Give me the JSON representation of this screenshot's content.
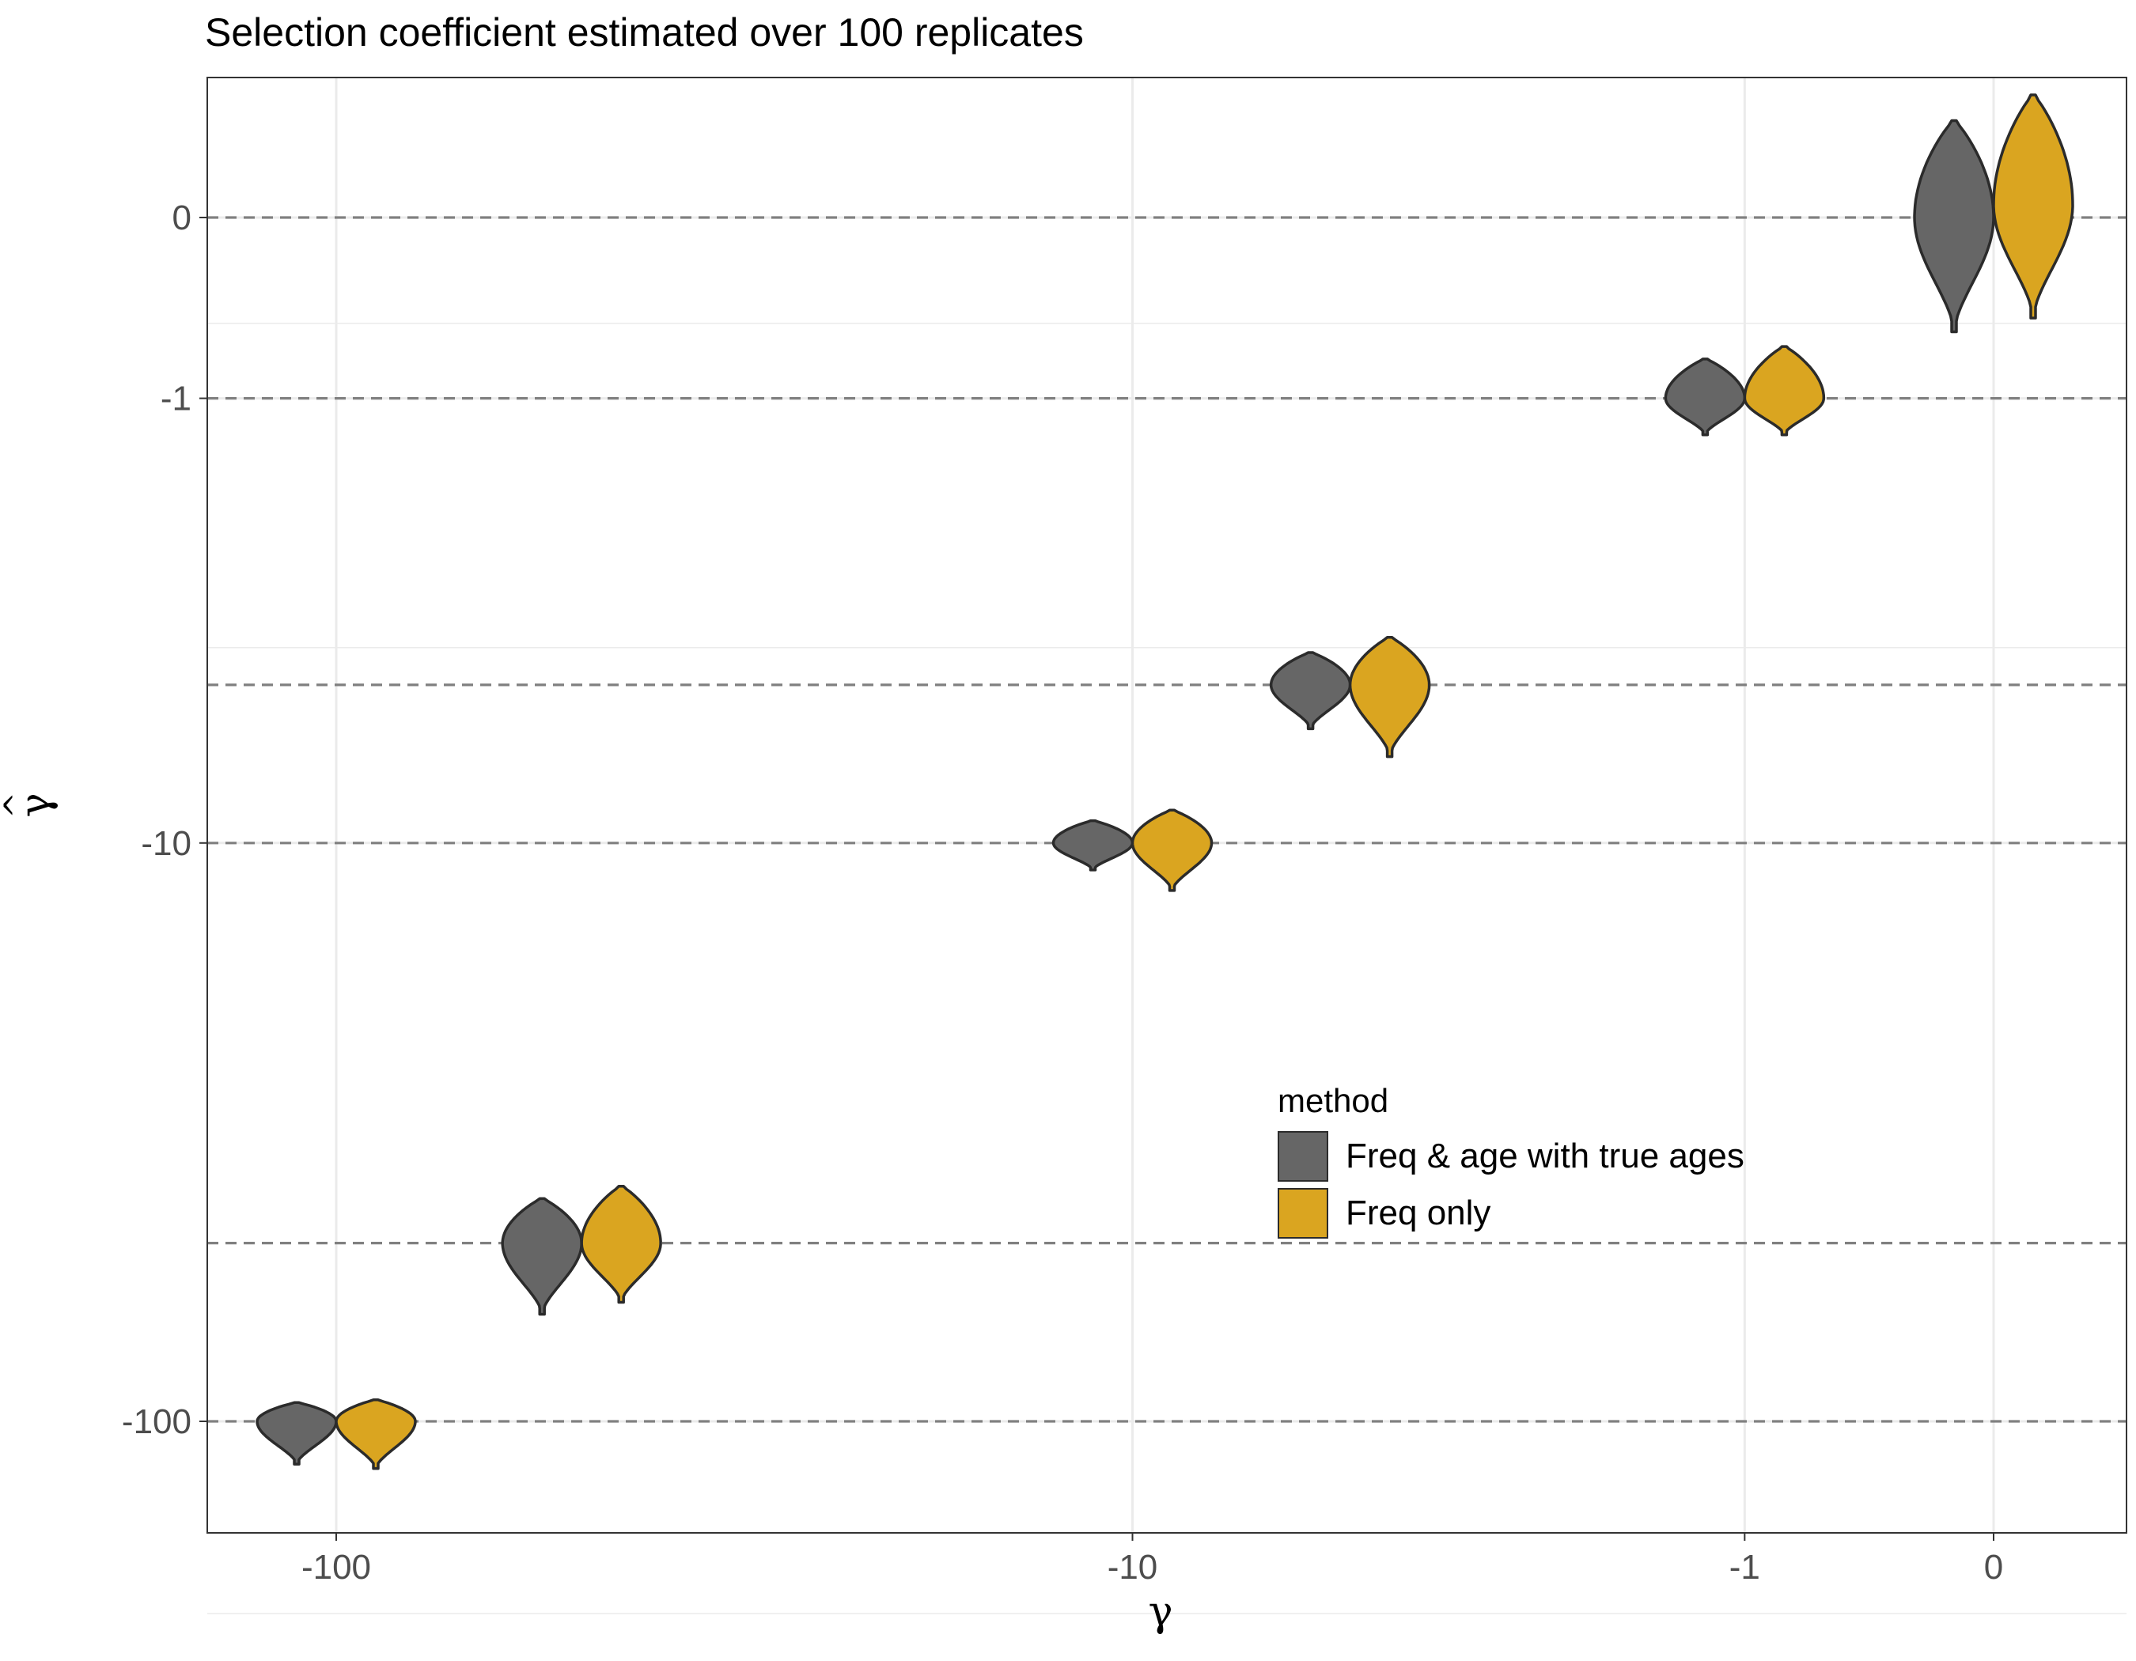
{
  "chart_data": {
    "type": "violin",
    "title": "Selection coefficient estimated over 100 replicates",
    "xlabel": "γ",
    "ylabel": "γ̂",
    "x_scale": "pseudo-log (signed)",
    "y_scale": "pseudo-log (signed)",
    "x_ticks": [
      "-100",
      "-10",
      "-1",
      "0"
    ],
    "y_ticks": [
      "0",
      "-1",
      "-10",
      "-100"
    ],
    "true_values": [
      -100,
      -50,
      -10,
      -5,
      -1,
      0
    ],
    "grid": true,
    "legend_position": "inside, lower right",
    "legend_title": "method",
    "series": [
      {
        "name": "Freq & age with true ages",
        "color": "#666666",
        "violins": [
          {
            "x": -100,
            "median": -100,
            "low": -118,
            "high": -93
          },
          {
            "x": -50,
            "median": -50,
            "low": -66,
            "high": -42
          },
          {
            "x": -10,
            "median": -10,
            "low": -11.2,
            "high": -9.1
          },
          {
            "x": -5,
            "median": -5,
            "low": -6.1,
            "high": -4.3
          },
          {
            "x": -1,
            "median": -1,
            "low": -1.3,
            "high": -0.72
          },
          {
            "x": 0,
            "median": 0,
            "low": -0.55,
            "high": 0.45
          }
        ]
      },
      {
        "name": "Freq only",
        "color": "#DAA520",
        "violins": [
          {
            "x": -100,
            "median": -100,
            "low": -120,
            "high": -92
          },
          {
            "x": -50,
            "median": -50,
            "low": -63,
            "high": -40
          },
          {
            "x": -10,
            "median": -10,
            "low": -12.2,
            "high": -8.7
          },
          {
            "x": -5,
            "median": -5,
            "low": -6.9,
            "high": -4.0
          },
          {
            "x": -1,
            "median": -1,
            "low": -1.3,
            "high": -0.64
          },
          {
            "x": 0,
            "median": 0.05,
            "low": -0.47,
            "high": 0.6
          }
        ]
      }
    ]
  }
}
